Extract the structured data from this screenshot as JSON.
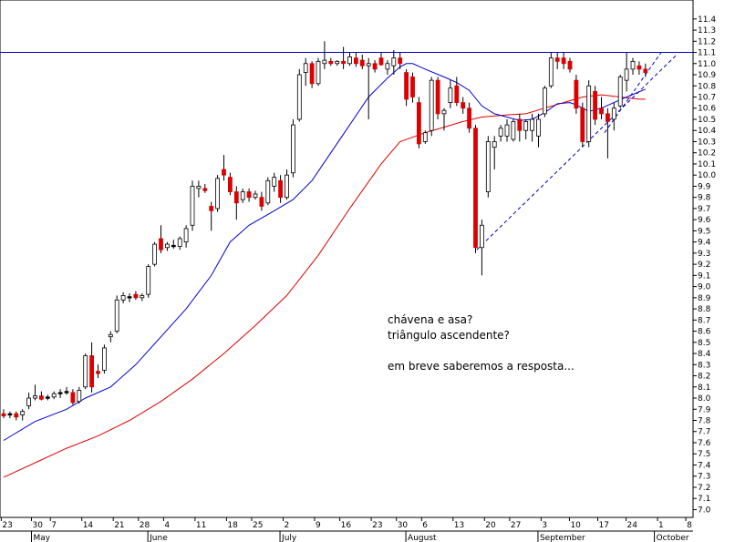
{
  "chart_data": {
    "type": "candlestick",
    "y_axis": {
      "position": "right",
      "range": [
        6.93,
        11.57
      ],
      "ticks": [
        7.0,
        7.1,
        7.2,
        7.3,
        7.4,
        7.5,
        7.6,
        7.7,
        7.8,
        7.9,
        8.0,
        8.1,
        8.2,
        8.3,
        8.4,
        8.5,
        8.6,
        8.7,
        8.8,
        8.9,
        9.0,
        9.1,
        9.2,
        9.3,
        9.4,
        9.5,
        9.6,
        9.7,
        9.8,
        9.9,
        10.0,
        10.1,
        10.2,
        10.3,
        10.4,
        10.5,
        10.6,
        10.7,
        10.8,
        10.9,
        11.0,
        11.1,
        11.2,
        11.3,
        11.4
      ],
      "tick_labels": [
        "7.0",
        "7.1",
        "7.2",
        "7.3",
        "7.4",
        "7.5",
        "7.6",
        "7.7",
        "7.8",
        "7.9",
        "8.0",
        "8.1",
        "8.2",
        "8.3",
        "8.4",
        "8.5",
        "8.6",
        "8.7",
        "8.8",
        "8.9",
        "9.0",
        "9.1",
        "9.2",
        "9.3",
        "9.4",
        "9.5",
        "9.6",
        "9.7",
        "9.8",
        "9.9",
        "10.0",
        "10.1",
        "10.2",
        "10.3",
        "10.4",
        "10.5",
        "10.6",
        "10.7",
        "10.8",
        "10.9",
        "11.0",
        "11.1",
        "11.2",
        "11.3",
        "11.4"
      ]
    },
    "x_axis": {
      "range": [
        0,
        108
      ],
      "day_ticks": [
        {
          "x": 0.2,
          "label": "23"
        },
        {
          "x": 5.0,
          "label": "30"
        },
        {
          "x": 8.0,
          "label": "7"
        },
        {
          "x": 13.0,
          "label": "14"
        },
        {
          "x": 18.0,
          "label": "21"
        },
        {
          "x": 22.0,
          "label": "28"
        },
        {
          "x": 26.0,
          "label": "4"
        },
        {
          "x": 31.0,
          "label": "11"
        },
        {
          "x": 36.0,
          "label": "18"
        },
        {
          "x": 40.0,
          "label": "25"
        },
        {
          "x": 45.0,
          "label": "2"
        },
        {
          "x": 50.0,
          "label": "9"
        },
        {
          "x": 54.0,
          "label": "16"
        },
        {
          "x": 59.0,
          "label": "23"
        },
        {
          "x": 63.0,
          "label": "30"
        },
        {
          "x": 67.0,
          "label": "6"
        },
        {
          "x": 72.0,
          "label": "13"
        },
        {
          "x": 77.0,
          "label": "20"
        },
        {
          "x": 81.0,
          "label": "27"
        },
        {
          "x": 86.0,
          "label": "3"
        },
        {
          "x": 90.5,
          "label": "10"
        },
        {
          "x": 95.0,
          "label": "17"
        },
        {
          "x": 99.5,
          "label": "24"
        },
        {
          "x": 104.5,
          "label": "1"
        },
        {
          "x": 109.0,
          "label": "8"
        }
      ],
      "month_ticks": [
        {
          "x": 5.0,
          "label": "May"
        },
        {
          "x": 23.5,
          "label": "June"
        },
        {
          "x": 44.5,
          "label": "July"
        },
        {
          "x": 64.5,
          "label": "August"
        },
        {
          "x": 85.5,
          "label": "September"
        },
        {
          "x": 104.0,
          "label": "October"
        }
      ]
    },
    "candles": [
      {
        "x": 0,
        "o": 7.86,
        "h": 7.9,
        "l": 7.82,
        "c": 7.84
      },
      {
        "x": 1,
        "o": 7.85,
        "h": 7.88,
        "l": 7.82,
        "c": 7.86
      },
      {
        "x": 2,
        "o": 7.86,
        "h": 7.88,
        "l": 7.8,
        "c": 7.83
      },
      {
        "x": 3,
        "o": 7.85,
        "h": 7.9,
        "l": 7.8,
        "c": 7.88
      },
      {
        "x": 4,
        "o": 7.93,
        "h": 8.05,
        "l": 7.9,
        "c": 8.0
      },
      {
        "x": 5,
        "o": 8.0,
        "h": 8.12,
        "l": 7.98,
        "c": 8.02
      },
      {
        "x": 6,
        "o": 8.02,
        "h": 8.06,
        "l": 7.98,
        "c": 7.99
      },
      {
        "x": 7,
        "o": 8.0,
        "h": 8.03,
        "l": 7.98,
        "c": 8.01
      },
      {
        "x": 8,
        "o": 8.01,
        "h": 8.06,
        "l": 7.99,
        "c": 8.04
      },
      {
        "x": 9,
        "o": 8.04,
        "h": 8.08,
        "l": 8.0,
        "c": 8.05
      },
      {
        "x": 10,
        "o": 8.06,
        "h": 8.1,
        "l": 8.03,
        "c": 8.05
      },
      {
        "x": 11,
        "o": 8.05,
        "h": 8.08,
        "l": 7.94,
        "c": 7.96
      },
      {
        "x": 12,
        "o": 7.97,
        "h": 8.1,
        "l": 7.95,
        "c": 8.07
      },
      {
        "x": 13,
        "o": 8.1,
        "h": 8.4,
        "l": 8.08,
        "c": 8.38
      },
      {
        "x": 14,
        "o": 8.38,
        "h": 8.5,
        "l": 8.05,
        "c": 8.1
      },
      {
        "x": 15,
        "o": 8.24,
        "h": 8.3,
        "l": 8.18,
        "c": 8.22
      },
      {
        "x": 16,
        "o": 8.25,
        "h": 8.48,
        "l": 8.22,
        "c": 8.45
      },
      {
        "x": 17,
        "o": 8.55,
        "h": 8.6,
        "l": 8.5,
        "c": 8.57
      },
      {
        "x": 18,
        "o": 8.6,
        "h": 8.92,
        "l": 8.58,
        "c": 8.88
      },
      {
        "x": 19,
        "o": 8.88,
        "h": 8.95,
        "l": 8.85,
        "c": 8.92
      },
      {
        "x": 20,
        "o": 8.9,
        "h": 8.94,
        "l": 8.86,
        "c": 8.91
      },
      {
        "x": 21,
        "o": 8.93,
        "h": 8.96,
        "l": 8.88,
        "c": 8.9
      },
      {
        "x": 22,
        "o": 8.9,
        "h": 8.94,
        "l": 8.87,
        "c": 8.92
      },
      {
        "x": 23,
        "o": 8.93,
        "h": 9.2,
        "l": 8.9,
        "c": 9.18
      },
      {
        "x": 24,
        "o": 9.2,
        "h": 9.4,
        "l": 9.18,
        "c": 9.38
      },
      {
        "x": 25,
        "o": 9.43,
        "h": 9.55,
        "l": 9.3,
        "c": 9.33
      },
      {
        "x": 26,
        "o": 9.35,
        "h": 9.4,
        "l": 9.32,
        "c": 9.38
      },
      {
        "x": 27,
        "o": 9.36,
        "h": 9.42,
        "l": 9.34,
        "c": 9.37
      },
      {
        "x": 28,
        "o": 9.36,
        "h": 9.45,
        "l": 9.33,
        "c": 9.43
      },
      {
        "x": 29,
        "o": 9.4,
        "h": 9.55,
        "l": 9.35,
        "c": 9.52
      },
      {
        "x": 30,
        "o": 9.55,
        "h": 9.95,
        "l": 9.5,
        "c": 9.9
      },
      {
        "x": 31,
        "o": 9.88,
        "h": 9.95,
        "l": 9.8,
        "c": 9.9
      },
      {
        "x": 32,
        "o": 9.88,
        "h": 9.92,
        "l": 9.84,
        "c": 9.86
      },
      {
        "x": 33,
        "o": 9.72,
        "h": 9.76,
        "l": 9.5,
        "c": 9.68
      },
      {
        "x": 34,
        "o": 9.7,
        "h": 10.0,
        "l": 9.67,
        "c": 9.97
      },
      {
        "x": 35,
        "o": 10.05,
        "h": 10.18,
        "l": 9.95,
        "c": 10.0
      },
      {
        "x": 36,
        "o": 9.98,
        "h": 10.02,
        "l": 9.82,
        "c": 9.85
      },
      {
        "x": 37,
        "o": 9.85,
        "h": 9.9,
        "l": 9.6,
        "c": 9.75
      },
      {
        "x": 38,
        "o": 9.78,
        "h": 9.88,
        "l": 9.75,
        "c": 9.85
      },
      {
        "x": 39,
        "o": 9.85,
        "h": 9.88,
        "l": 9.76,
        "c": 9.8
      },
      {
        "x": 40,
        "o": 9.8,
        "h": 9.86,
        "l": 9.78,
        "c": 9.83
      },
      {
        "x": 41,
        "o": 9.8,
        "h": 9.85,
        "l": 9.68,
        "c": 9.72
      },
      {
        "x": 42,
        "o": 9.75,
        "h": 9.98,
        "l": 9.73,
        "c": 9.95
      },
      {
        "x": 43,
        "o": 9.9,
        "h": 10.02,
        "l": 9.85,
        "c": 9.98
      },
      {
        "x": 44,
        "o": 9.95,
        "h": 10.0,
        "l": 9.75,
        "c": 9.8
      },
      {
        "x": 45,
        "o": 9.8,
        "h": 10.05,
        "l": 9.78,
        "c": 10.0
      },
      {
        "x": 46,
        "o": 10.02,
        "h": 10.5,
        "l": 9.98,
        "c": 10.45
      },
      {
        "x": 47,
        "o": 10.5,
        "h": 10.95,
        "l": 10.48,
        "c": 10.9
      },
      {
        "x": 48,
        "o": 10.92,
        "h": 11.05,
        "l": 10.8,
        "c": 11.0
      },
      {
        "x": 49,
        "o": 11.0,
        "h": 11.02,
        "l": 10.78,
        "c": 10.82
      },
      {
        "x": 50,
        "o": 10.82,
        "h": 11.05,
        "l": 10.8,
        "c": 11.02
      },
      {
        "x": 51,
        "o": 11.0,
        "h": 11.2,
        "l": 10.95,
        "c": 11.03
      },
      {
        "x": 52,
        "o": 11.02,
        "h": 11.05,
        "l": 10.98,
        "c": 11.0
      },
      {
        "x": 53,
        "o": 11.0,
        "h": 11.03,
        "l": 10.98,
        "c": 11.02
      },
      {
        "x": 54,
        "o": 11.02,
        "h": 11.15,
        "l": 10.95,
        "c": 11.0
      },
      {
        "x": 55,
        "o": 11.0,
        "h": 11.1,
        "l": 10.98,
        "c": 11.06
      },
      {
        "x": 56,
        "o": 11.05,
        "h": 11.1,
        "l": 10.97,
        "c": 11.0
      },
      {
        "x": 57,
        "o": 11.03,
        "h": 11.08,
        "l": 10.95,
        "c": 10.98
      },
      {
        "x": 58,
        "o": 10.98,
        "h": 11.05,
        "l": 10.5,
        "c": 11.0
      },
      {
        "x": 59,
        "o": 11.0,
        "h": 11.03,
        "l": 10.92,
        "c": 10.95
      },
      {
        "x": 60,
        "o": 11.05,
        "h": 11.1,
        "l": 10.98,
        "c": 10.99
      },
      {
        "x": 61,
        "o": 10.95,
        "h": 11.03,
        "l": 10.9,
        "c": 11.0
      },
      {
        "x": 62,
        "o": 10.98,
        "h": 11.12,
        "l": 10.9,
        "c": 11.05
      },
      {
        "x": 63,
        "o": 11.05,
        "h": 11.1,
        "l": 10.95,
        "c": 11.0
      },
      {
        "x": 64,
        "o": 10.92,
        "h": 10.95,
        "l": 10.62,
        "c": 10.68
      },
      {
        "x": 65,
        "o": 10.88,
        "h": 10.92,
        "l": 10.65,
        "c": 10.7
      },
      {
        "x": 66,
        "o": 10.65,
        "h": 10.7,
        "l": 10.24,
        "c": 10.28
      },
      {
        "x": 67,
        "o": 10.3,
        "h": 10.4,
        "l": 10.28,
        "c": 10.38
      },
      {
        "x": 68,
        "o": 10.4,
        "h": 10.88,
        "l": 10.35,
        "c": 10.85
      },
      {
        "x": 69,
        "o": 10.85,
        "h": 10.88,
        "l": 10.5,
        "c": 10.55
      },
      {
        "x": 70,
        "o": 10.55,
        "h": 10.6,
        "l": 10.4,
        "c": 10.58
      },
      {
        "x": 71,
        "o": 10.65,
        "h": 10.85,
        "l": 10.6,
        "c": 10.78
      },
      {
        "x": 72,
        "o": 10.8,
        "h": 10.88,
        "l": 10.62,
        "c": 10.65
      },
      {
        "x": 73,
        "o": 10.65,
        "h": 10.7,
        "l": 10.55,
        "c": 10.6
      },
      {
        "x": 74,
        "o": 10.6,
        "h": 10.65,
        "l": 10.38,
        "c": 10.42
      },
      {
        "x": 75,
        "o": 10.42,
        "h": 10.45,
        "l": 9.3,
        "c": 9.35
      },
      {
        "x": 76,
        "o": 9.35,
        "h": 9.6,
        "l": 9.1,
        "c": 9.55
      },
      {
        "x": 77,
        "o": 9.85,
        "h": 10.35,
        "l": 9.8,
        "c": 10.3
      },
      {
        "x": 78,
        "o": 10.25,
        "h": 10.35,
        "l": 10.05,
        "c": 10.3
      },
      {
        "x": 79,
        "o": 10.35,
        "h": 10.45,
        "l": 10.3,
        "c": 10.42
      },
      {
        "x": 80,
        "o": 10.35,
        "h": 10.5,
        "l": 10.3,
        "c": 10.45
      },
      {
        "x": 81,
        "o": 10.32,
        "h": 10.5,
        "l": 10.3,
        "c": 10.48
      },
      {
        "x": 82,
        "o": 10.5,
        "h": 10.55,
        "l": 10.3,
        "c": 10.4
      },
      {
        "x": 83,
        "o": 10.4,
        "h": 10.5,
        "l": 10.32,
        "c": 10.48
      },
      {
        "x": 84,
        "o": 10.4,
        "h": 10.55,
        "l": 10.3,
        "c": 10.5
      },
      {
        "x": 85,
        "o": 10.35,
        "h": 10.55,
        "l": 10.25,
        "c": 10.5
      },
      {
        "x": 86,
        "o": 10.55,
        "h": 10.8,
        "l": 10.52,
        "c": 10.78
      },
      {
        "x": 87,
        "o": 10.8,
        "h": 11.1,
        "l": 10.78,
        "c": 11.05
      },
      {
        "x": 88,
        "o": 11.05,
        "h": 11.1,
        "l": 10.95,
        "c": 11.02
      },
      {
        "x": 89,
        "o": 11.05,
        "h": 11.1,
        "l": 10.95,
        "c": 11.0
      },
      {
        "x": 90,
        "o": 11.02,
        "h": 11.05,
        "l": 10.92,
        "c": 10.95
      },
      {
        "x": 91,
        "o": 10.85,
        "h": 10.9,
        "l": 10.55,
        "c": 10.6
      },
      {
        "x": 92,
        "o": 10.6,
        "h": 10.65,
        "l": 10.25,
        "c": 10.3
      },
      {
        "x": 93,
        "o": 10.3,
        "h": 10.85,
        "l": 10.25,
        "c": 10.8
      },
      {
        "x": 94,
        "o": 10.75,
        "h": 10.8,
        "l": 10.45,
        "c": 10.5
      },
      {
        "x": 95,
        "o": 10.6,
        "h": 10.7,
        "l": 10.5,
        "c": 10.55
      },
      {
        "x": 96,
        "o": 10.55,
        "h": 10.6,
        "l": 10.15,
        "c": 10.48
      },
      {
        "x": 97,
        "o": 10.5,
        "h": 10.65,
        "l": 10.4,
        "c": 10.6
      },
      {
        "x": 98,
        "o": 10.62,
        "h": 10.9,
        "l": 10.6,
        "c": 10.88
      },
      {
        "x": 99,
        "o": 10.85,
        "h": 11.1,
        "l": 10.75,
        "c": 10.95
      },
      {
        "x": 100,
        "o": 10.95,
        "h": 11.05,
        "l": 10.9,
        "c": 11.02
      },
      {
        "x": 101,
        "o": 10.98,
        "h": 11.02,
        "l": 10.9,
        "c": 10.95
      },
      {
        "x": 102,
        "o": 10.95,
        "h": 11.0,
        "l": 10.88,
        "c": 10.92
      }
    ],
    "ma_blue": {
      "color": "#0000cc",
      "points": [
        [
          0,
          7.62
        ],
        [
          5,
          7.79
        ],
        [
          10,
          7.9
        ],
        [
          13,
          8.0
        ],
        [
          17,
          8.1
        ],
        [
          21,
          8.3
        ],
        [
          25,
          8.55
        ],
        [
          29,
          8.8
        ],
        [
          33,
          9.1
        ],
        [
          36,
          9.4
        ],
        [
          39,
          9.55
        ],
        [
          43,
          9.68
        ],
        [
          46,
          9.78
        ],
        [
          49,
          9.95
        ],
        [
          52,
          10.2
        ],
        [
          55,
          10.45
        ],
        [
          58,
          10.7
        ],
        [
          61,
          10.87
        ],
        [
          63,
          10.97
        ],
        [
          64,
          11.0
        ],
        [
          65,
          11.0
        ],
        [
          67,
          10.95
        ],
        [
          70,
          10.88
        ],
        [
          72,
          10.83
        ],
        [
          74,
          10.76
        ],
        [
          76,
          10.62
        ],
        [
          78,
          10.55
        ],
        [
          80,
          10.52
        ],
        [
          82,
          10.49
        ],
        [
          84,
          10.5
        ],
        [
          86,
          10.56
        ],
        [
          88,
          10.64
        ],
        [
          90,
          10.65
        ],
        [
          91,
          10.63
        ],
        [
          93,
          10.57
        ],
        [
          95,
          10.6
        ],
        [
          97,
          10.65
        ],
        [
          99,
          10.7
        ],
        [
          102,
          10.77
        ]
      ]
    },
    "ma_red": {
      "color": "#dd0000",
      "points": [
        [
          0,
          7.29
        ],
        [
          5,
          7.42
        ],
        [
          10,
          7.55
        ],
        [
          15,
          7.66
        ],
        [
          20,
          7.8
        ],
        [
          25,
          7.97
        ],
        [
          30,
          8.17
        ],
        [
          35,
          8.4
        ],
        [
          40,
          8.65
        ],
        [
          45,
          8.92
        ],
        [
          50,
          9.28
        ],
        [
          55,
          9.7
        ],
        [
          60,
          10.1
        ],
        [
          63,
          10.3
        ],
        [
          67,
          10.38
        ],
        [
          70,
          10.43
        ],
        [
          73,
          10.48
        ],
        [
          76,
          10.52
        ],
        [
          80,
          10.54
        ],
        [
          83,
          10.55
        ],
        [
          86,
          10.6
        ],
        [
          89,
          10.65
        ],
        [
          92,
          10.7
        ],
        [
          95,
          10.72
        ],
        [
          98,
          10.7
        ],
        [
          101,
          10.68
        ],
        [
          102,
          10.68
        ]
      ]
    },
    "resistance_line": {
      "y": 11.1,
      "color": "#0000cc"
    },
    "support_trendline": {
      "color": "#0000cc",
      "style": "dashed",
      "points": [
        [
          75.2,
          9.33
        ],
        [
          106.8,
          11.07
        ]
      ]
    },
    "support_trendline_2": {
      "color": "#0000cc",
      "style": "dashed",
      "points": [
        [
          95.5,
          10.38
        ],
        [
          104.5,
          11.1
        ]
      ]
    },
    "annotations": [
      "chávena e asa?",
      "triângulo ascendente?",
      "em breve saberemos a resposta..."
    ],
    "colors": {
      "up": "#ffffff",
      "down": "#dd0000",
      "doji": "#000000",
      "axis": "#000000"
    }
  }
}
